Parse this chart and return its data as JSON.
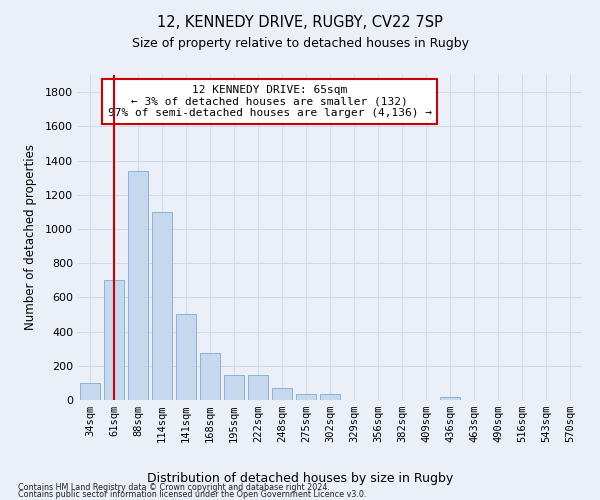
{
  "title1": "12, KENNEDY DRIVE, RUGBY, CV22 7SP",
  "title2": "Size of property relative to detached houses in Rugby",
  "xlabel": "Distribution of detached houses by size in Rugby",
  "ylabel": "Number of detached properties",
  "bar_color": "#c5d8ee",
  "bar_edge_color": "#7aaed4",
  "categories": [
    "34sqm",
    "61sqm",
    "88sqm",
    "114sqm",
    "141sqm",
    "168sqm",
    "195sqm",
    "222sqm",
    "248sqm",
    "275sqm",
    "302sqm",
    "329sqm",
    "356sqm",
    "382sqm",
    "409sqm",
    "436sqm",
    "463sqm",
    "490sqm",
    "516sqm",
    "543sqm",
    "570sqm"
  ],
  "values": [
    100,
    700,
    1340,
    1100,
    500,
    275,
    145,
    145,
    70,
    35,
    35,
    0,
    0,
    0,
    0,
    20,
    0,
    0,
    0,
    0,
    0
  ],
  "ylim": [
    0,
    1900
  ],
  "yticks": [
    0,
    200,
    400,
    600,
    800,
    1000,
    1200,
    1400,
    1600,
    1800
  ],
  "vline_x": 1,
  "vline_color": "#cc0000",
  "annotation_text": "12 KENNEDY DRIVE: 65sqm\n← 3% of detached houses are smaller (132)\n97% of semi-detached houses are larger (4,136) →",
  "annotation_box_color": "#ffffff",
  "annotation_box_edge": "#cc0000",
  "grid_color": "#cdd8e8",
  "bg_color": "#eaeff8",
  "footer1": "Contains HM Land Registry data © Crown copyright and database right 2024.",
  "footer2": "Contains public sector information licensed under the Open Government Licence v3.0."
}
